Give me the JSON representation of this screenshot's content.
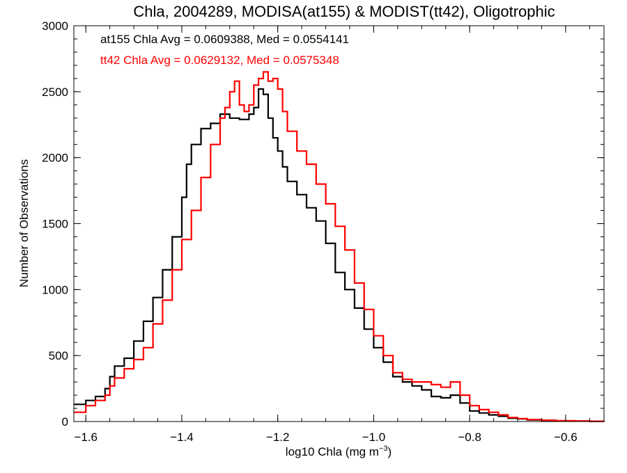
{
  "chart_data": {
    "type": "line",
    "title": "Chla, 2004289, MODISA(at155) & MODIST(tt42), Oligotrophic",
    "xlabel": "log10 Chla (mg m",
    "xlabel_exponent": "−3",
    "xlabel_suffix": ")",
    "ylabel": "Number of Observations",
    "xlim": [
      -1.625,
      -0.52
    ],
    "ylim": [
      0,
      3000
    ],
    "x_ticks": [
      -1.6,
      -1.4,
      -1.2,
      -1.0,
      -0.8,
      -0.6
    ],
    "x_tick_labels": [
      "−1.6",
      "−1.4",
      "−1.2",
      "−1.0",
      "−0.8",
      "−0.6"
    ],
    "y_ticks": [
      0,
      500,
      1000,
      1500,
      2000,
      2500,
      3000
    ],
    "y_tick_labels": [
      "0",
      "500",
      "1000",
      "1500",
      "2000",
      "2500",
      "3000"
    ],
    "grid": false,
    "annotations": [
      {
        "text": "at155 Chla Avg = 0.0609388, Med = 0.0554141",
        "color": "#000000"
      },
      {
        "text": "tt42 Chla Avg = 0.0629132, Med = 0.0575348",
        "color": "#ff0000"
      }
    ],
    "series": [
      {
        "color": "#000000",
        "step": "histogram",
        "points": [
          [
            -1.625,
            130
          ],
          [
            -1.6,
            160
          ],
          [
            -1.58,
            190
          ],
          [
            -1.56,
            250
          ],
          [
            -1.55,
            340
          ],
          [
            -1.54,
            420
          ],
          [
            -1.52,
            480
          ],
          [
            -1.5,
            610
          ],
          [
            -1.48,
            760
          ],
          [
            -1.46,
            940
          ],
          [
            -1.44,
            1150
          ],
          [
            -1.42,
            1400
          ],
          [
            -1.4,
            1700
          ],
          [
            -1.39,
            1950
          ],
          [
            -1.38,
            2100
          ],
          [
            -1.36,
            2220
          ],
          [
            -1.34,
            2260
          ],
          [
            -1.32,
            2330
          ],
          [
            -1.3,
            2300
          ],
          [
            -1.28,
            2290
          ],
          [
            -1.26,
            2330
          ],
          [
            -1.25,
            2380
          ],
          [
            -1.24,
            2520
          ],
          [
            -1.23,
            2480
          ],
          [
            -1.22,
            2300
          ],
          [
            -1.21,
            2150
          ],
          [
            -1.2,
            2050
          ],
          [
            -1.19,
            1930
          ],
          [
            -1.18,
            1820
          ],
          [
            -1.16,
            1720
          ],
          [
            -1.14,
            1620
          ],
          [
            -1.12,
            1520
          ],
          [
            -1.1,
            1350
          ],
          [
            -1.08,
            1130
          ],
          [
            -1.06,
            1000
          ],
          [
            -1.04,
            860
          ],
          [
            -1.02,
            700
          ],
          [
            -1.0,
            560
          ],
          [
            -0.98,
            450
          ],
          [
            -0.96,
            340
          ],
          [
            -0.94,
            300
          ],
          [
            -0.92,
            270
          ],
          [
            -0.9,
            240
          ],
          [
            -0.88,
            190
          ],
          [
            -0.86,
            180
          ],
          [
            -0.84,
            200
          ],
          [
            -0.82,
            140
          ],
          [
            -0.8,
            80
          ],
          [
            -0.78,
            65
          ],
          [
            -0.76,
            50
          ],
          [
            -0.74,
            40
          ],
          [
            -0.72,
            25
          ],
          [
            -0.7,
            20
          ],
          [
            -0.68,
            12
          ],
          [
            -0.65,
            8
          ],
          [
            -0.62,
            5
          ],
          [
            -0.58,
            3
          ],
          [
            -0.55,
            2
          ],
          [
            -0.52,
            1
          ]
        ]
      },
      {
        "color": "#ff0000",
        "step": "histogram",
        "points": [
          [
            -1.625,
            70
          ],
          [
            -1.6,
            120
          ],
          [
            -1.58,
            160
          ],
          [
            -1.56,
            200
          ],
          [
            -1.55,
            270
          ],
          [
            -1.54,
            330
          ],
          [
            -1.52,
            400
          ],
          [
            -1.5,
            470
          ],
          [
            -1.48,
            560
          ],
          [
            -1.46,
            740
          ],
          [
            -1.44,
            920
          ],
          [
            -1.42,
            1150
          ],
          [
            -1.4,
            1380
          ],
          [
            -1.38,
            1600
          ],
          [
            -1.36,
            1850
          ],
          [
            -1.34,
            2100
          ],
          [
            -1.32,
            2300
          ],
          [
            -1.31,
            2380
          ],
          [
            -1.3,
            2500
          ],
          [
            -1.29,
            2580
          ],
          [
            -1.28,
            2400
          ],
          [
            -1.27,
            2350
          ],
          [
            -1.26,
            2400
          ],
          [
            -1.25,
            2550
          ],
          [
            -1.24,
            2600
          ],
          [
            -1.23,
            2650
          ],
          [
            -1.22,
            2580
          ],
          [
            -1.21,
            2600
          ],
          [
            -1.2,
            2520
          ],
          [
            -1.19,
            2350
          ],
          [
            -1.18,
            2200
          ],
          [
            -1.16,
            2050
          ],
          [
            -1.14,
            1950
          ],
          [
            -1.12,
            1800
          ],
          [
            -1.1,
            1650
          ],
          [
            -1.08,
            1480
          ],
          [
            -1.06,
            1300
          ],
          [
            -1.04,
            1050
          ],
          [
            -1.02,
            850
          ],
          [
            -1.0,
            650
          ],
          [
            -0.98,
            500
          ],
          [
            -0.96,
            370
          ],
          [
            -0.94,
            320
          ],
          [
            -0.92,
            300
          ],
          [
            -0.9,
            300
          ],
          [
            -0.88,
            280
          ],
          [
            -0.86,
            260
          ],
          [
            -0.84,
            300
          ],
          [
            -0.82,
            200
          ],
          [
            -0.8,
            120
          ],
          [
            -0.78,
            90
          ],
          [
            -0.76,
            70
          ],
          [
            -0.74,
            50
          ],
          [
            -0.72,
            30
          ],
          [
            -0.7,
            22
          ],
          [
            -0.68,
            15
          ],
          [
            -0.65,
            10
          ],
          [
            -0.62,
            6
          ],
          [
            -0.58,
            4
          ],
          [
            -0.55,
            2
          ],
          [
            -0.52,
            1
          ]
        ]
      }
    ]
  }
}
